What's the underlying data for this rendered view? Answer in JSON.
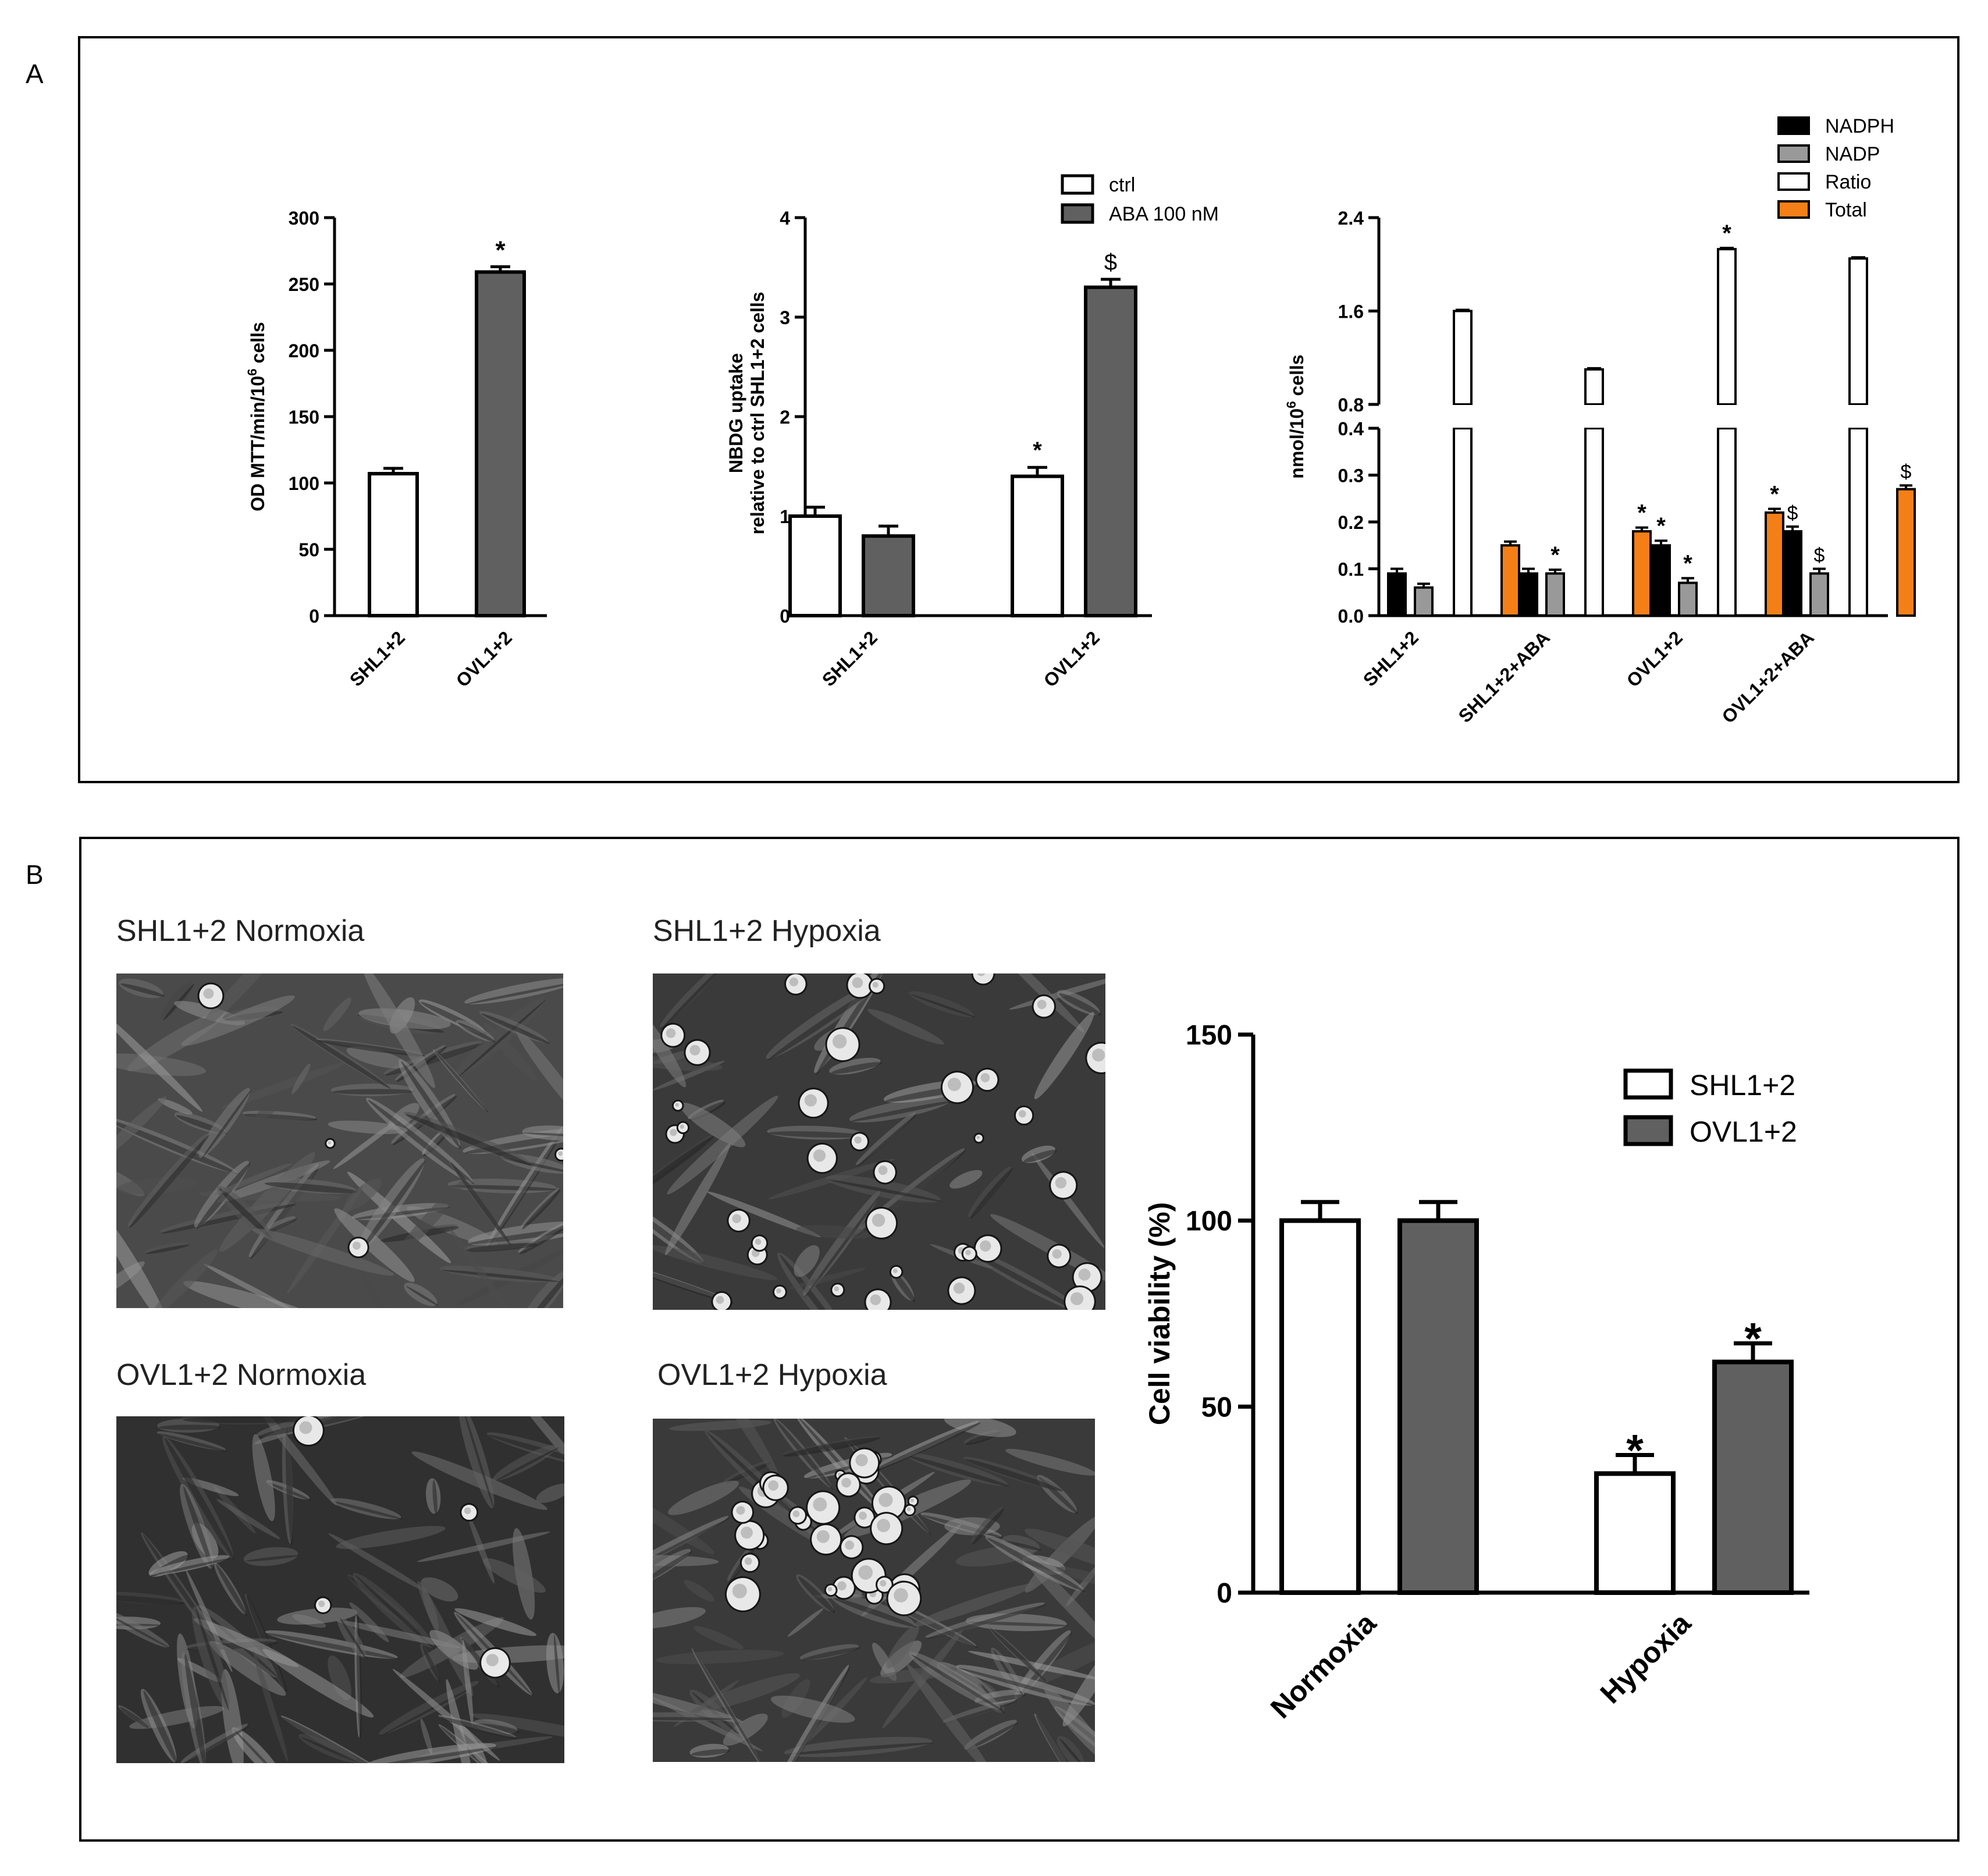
{
  "panels": {
    "a": "A",
    "b": "B"
  },
  "colors": {
    "ctrl": "#ffffff",
    "aba": "#606060",
    "nadph": "#000000",
    "nadp": "#999999",
    "ratio": "#ffffff",
    "total": "#f57f17",
    "axis": "#000000"
  },
  "micrographs": [
    {
      "title": "SHL1+2 Normoxia",
      "appearance": "dense elongated cells"
    },
    {
      "title": "SHL1+2 Hypoxia",
      "appearance": "many rounded bright dead cells"
    },
    {
      "title": "OVL1+2 Normoxia",
      "appearance": "dense elongated cells"
    },
    {
      "title": "OVL1+2 Hypoxia",
      "appearance": "cell cluster with rounded cells"
    }
  ],
  "chart_data": [
    {
      "type": "bar",
      "ylabel": "OD MTT/min/10⁶ cells",
      "ylim": [
        0,
        300
      ],
      "yticks": [
        "0",
        "50",
        "100",
        "150",
        "200",
        "250",
        "300"
      ],
      "categories": [
        "SHL1+2",
        "OVL1+2"
      ],
      "values": [
        107,
        259
      ],
      "errors": [
        4,
        4
      ],
      "bar_colors": [
        "#ffffff",
        "#606060"
      ],
      "annotations": [
        "",
        "*"
      ]
    },
    {
      "type": "bar",
      "ylabel": [
        "NBDG uptake",
        "relative to ctrl SHL1+2 cells"
      ],
      "ylim": [
        0,
        4
      ],
      "yticks": [
        "0",
        "1",
        "2",
        "3",
        "4"
      ],
      "categories": [
        "SHL1+2",
        "OVL1+2"
      ],
      "series": [
        {
          "name": "ctrl",
          "values": [
            1.0,
            1.4
          ],
          "errors": [
            0.09,
            0.09
          ],
          "annotations": [
            "",
            "*"
          ]
        },
        {
          "name": "ABA 100 nM",
          "values": [
            0.8,
            3.3
          ],
          "errors": [
            0.1,
            0.08
          ],
          "annotations": [
            "",
            "$"
          ]
        }
      ],
      "legend_position": "top"
    },
    {
      "type": "bar",
      "ylabel": "nmol/10⁶ cells",
      "broken_axis": true,
      "ylim_lower": [
        0,
        0.4
      ],
      "ylim_upper": [
        0.8,
        2.4
      ],
      "yticks_lower": [
        "0.0",
        "0.1",
        "0.2",
        "0.3",
        "0.4"
      ],
      "yticks_upper": [
        "0.8",
        "1.6",
        "2.4"
      ],
      "categories": [
        "SHL1+2",
        "SHL1+2+ABA",
        "OVL1+2",
        "OVL1+2+ABA"
      ],
      "series": [
        {
          "name": "NADPH",
          "values": [
            0.09,
            0.09,
            0.15,
            0.18
          ],
          "errors": [
            0.01,
            0.01,
            0.01,
            0.01
          ],
          "annotations": [
            "",
            "",
            "*",
            "$"
          ]
        },
        {
          "name": "NADP",
          "values": [
            0.06,
            0.09,
            0.07,
            0.09
          ],
          "errors": [
            0.008,
            0.008,
            0.01,
            0.01
          ],
          "annotations": [
            "",
            "*",
            "*",
            "$"
          ]
        },
        {
          "name": "Ratio",
          "values": [
            1.6,
            1.1,
            2.13,
            2.05
          ],
          "errors": [
            0.01,
            0.01,
            0.01,
            0.01
          ],
          "annotations": [
            "",
            "",
            "*",
            ""
          ]
        },
        {
          "name": "Total",
          "values": [
            0.15,
            0.18,
            0.22,
            0.27
          ],
          "errors": [
            0.008,
            0.008,
            0.008,
            0.008
          ],
          "annotations": [
            "",
            "*",
            "*",
            "$"
          ]
        }
      ],
      "legend_position": "top-right"
    },
    {
      "type": "bar",
      "ylabel": "Cell viability (%)",
      "ylim": [
        0,
        150
      ],
      "yticks": [
        "0",
        "50",
        "100",
        "150"
      ],
      "categories": [
        "Normoxia",
        "Hypoxia"
      ],
      "series": [
        {
          "name": "SHL1+2",
          "values": [
            100,
            32
          ],
          "errors": [
            5,
            5
          ],
          "annotations": [
            "",
            "*"
          ]
        },
        {
          "name": "OVL1+2",
          "values": [
            100,
            62
          ],
          "errors": [
            5,
            5
          ],
          "annotations": [
            "",
            "*"
          ]
        }
      ],
      "legend_position": "top-right"
    }
  ]
}
